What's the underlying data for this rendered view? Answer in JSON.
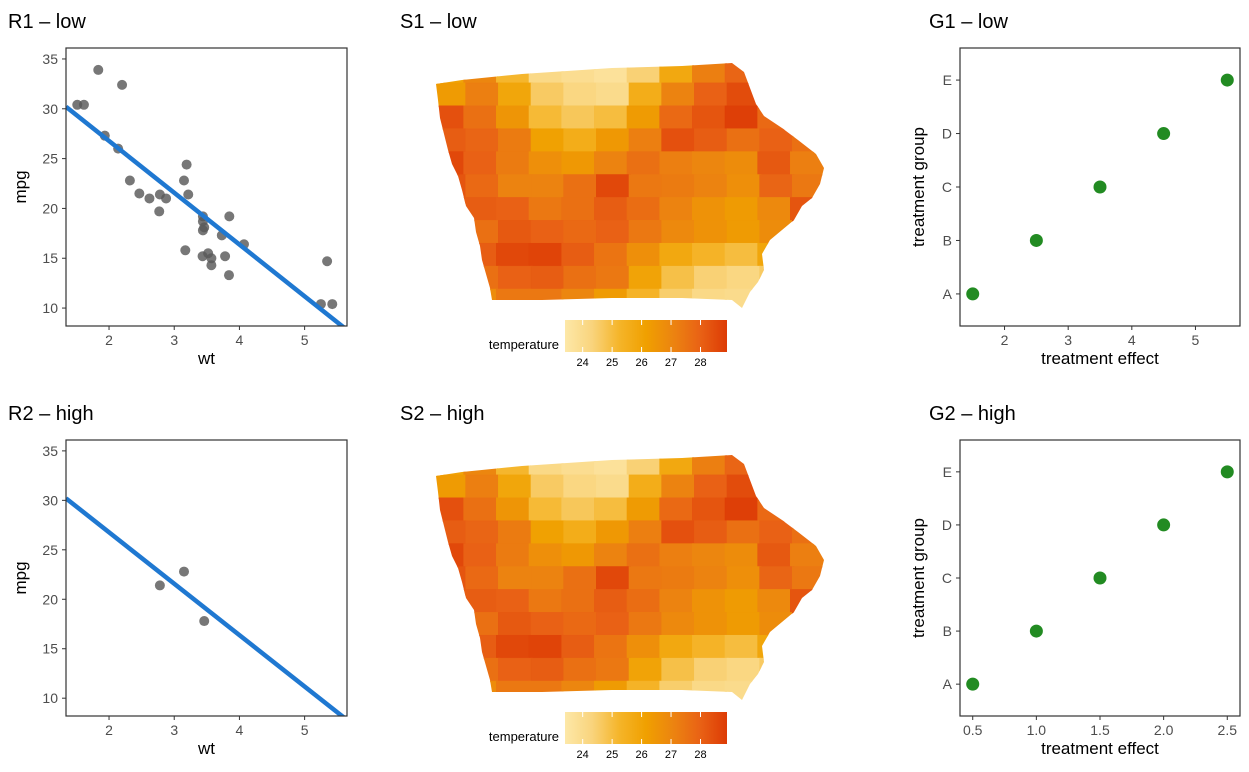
{
  "chart_data": [
    {
      "id": "R1",
      "type": "scatter",
      "title": "R1 – low",
      "xlabel": "wt",
      "ylabel": "mpg",
      "xlim": [
        1.34,
        5.65
      ],
      "ylim": [
        8.2,
        36.1
      ],
      "xticks": [
        2,
        3,
        4,
        5
      ],
      "yticks": [
        10,
        15,
        20,
        25,
        30,
        35
      ],
      "point_color": "#595959",
      "line_color": "#1f78d1",
      "regression_line": {
        "x": [
          1.34,
          5.65
        ],
        "y": [
          30.2,
          7.8
        ]
      },
      "points": {
        "x": [
          2.62,
          2.875,
          2.32,
          3.215,
          3.44,
          3.46,
          3.57,
          3.19,
          3.15,
          3.44,
          3.44,
          4.07,
          3.73,
          3.78,
          5.25,
          5.424,
          5.345,
          2.2,
          1.615,
          1.835,
          2.465,
          3.52,
          3.435,
          3.84,
          3.845,
          1.935,
          2.14,
          1.513,
          3.17,
          2.77,
          3.57,
          2.78
        ],
        "y": [
          21.0,
          21.0,
          22.8,
          21.4,
          18.7,
          18.1,
          14.3,
          24.4,
          22.8,
          19.2,
          17.8,
          16.4,
          17.3,
          15.2,
          10.4,
          10.4,
          14.7,
          32.4,
          30.4,
          33.9,
          21.5,
          15.5,
          15.2,
          13.3,
          19.2,
          27.3,
          26.0,
          30.4,
          15.8,
          19.7,
          15.0,
          21.4
        ]
      }
    },
    {
      "id": "S1",
      "type": "heatmap",
      "title": "S1 – low",
      "legend_title": "temperature",
      "legend_ticks": [
        24,
        25,
        26,
        27,
        28
      ],
      "legend_range": [
        23.4,
        28.9
      ],
      "palette": [
        "#fde8a8",
        "#f9d47d",
        "#f5b52a",
        "#f0a000",
        "#ec8410",
        "#e96215",
        "#dd3b05"
      ],
      "grid": [
        [
          26.0,
          27.0,
          25.2,
          24.1,
          23.9,
          23.7,
          24.4,
          25.8,
          27.2,
          27.9,
          28.1,
          26.8
        ],
        [
          26.3,
          27.2,
          25.9,
          24.6,
          24.2,
          24.0,
          25.6,
          27.1,
          28.0,
          28.5,
          27.6,
          26.3
        ],
        [
          28.4,
          27.6,
          26.5,
          25.1,
          24.7,
          25.0,
          26.3,
          27.8,
          28.3,
          28.8,
          27.8,
          27.0
        ],
        [
          28.1,
          27.9,
          27.3,
          26.1,
          25.6,
          26.4,
          27.2,
          28.4,
          28.1,
          27.6,
          28.0,
          27.6
        ],
        [
          28.6,
          28.0,
          27.3,
          26.7,
          26.4,
          27.1,
          27.6,
          27.2,
          27.0,
          26.8,
          28.2,
          27.2
        ],
        [
          28.3,
          27.8,
          27.1,
          27.1,
          27.6,
          28.6,
          27.4,
          27.3,
          27.1,
          26.7,
          27.9,
          27.4
        ],
        [
          27.8,
          28.1,
          28.0,
          27.4,
          27.6,
          28.1,
          27.7,
          27.1,
          26.6,
          26.3,
          26.9,
          28.3
        ],
        [
          26.3,
          27.6,
          28.2,
          28.0,
          27.8,
          28.0,
          27.4,
          26.9,
          26.6,
          26.3,
          26.8,
          28.6
        ],
        [
          26.4,
          28.1,
          28.6,
          28.7,
          28.1,
          27.5,
          26.7,
          25.8,
          25.3,
          25.0,
          25.9,
          27.4
        ],
        [
          26.8,
          27.6,
          28.0,
          28.1,
          27.6,
          27.4,
          26.0,
          24.9,
          24.4,
          24.2,
          24.6,
          25.6
        ],
        [
          26.2,
          26.8,
          27.4,
          27.4,
          27.0,
          26.3,
          25.3,
          24.5,
          24.1,
          24.0,
          24.4,
          25.1
        ]
      ]
    },
    {
      "id": "G1",
      "type": "scatter",
      "title": "G1 – low",
      "xlabel": "treatment effect",
      "ylabel": "treatment group",
      "xlim": [
        1.3,
        5.7
      ],
      "xticks": [
        2,
        3,
        4,
        5
      ],
      "categories": [
        "A",
        "B",
        "C",
        "D",
        "E"
      ],
      "point_color": "#228b22",
      "values": [
        1.5,
        2.5,
        3.5,
        4.5,
        5.5
      ]
    },
    {
      "id": "R2",
      "type": "scatter",
      "title": "R2 – high",
      "xlabel": "wt",
      "ylabel": "mpg",
      "xlim": [
        1.34,
        5.65
      ],
      "ylim": [
        8.2,
        36.1
      ],
      "xticks": [
        2,
        3,
        4,
        5
      ],
      "yticks": [
        10,
        15,
        20,
        25,
        30,
        35
      ],
      "point_color": "#595959",
      "line_color": "#1f78d1",
      "regression_line": {
        "x": [
          1.34,
          5.65
        ],
        "y": [
          30.2,
          7.8
        ]
      },
      "points": {
        "x": [
          2.78,
          3.15,
          3.46
        ],
        "y": [
          21.4,
          22.8,
          17.8
        ]
      }
    },
    {
      "id": "S2",
      "type": "heatmap",
      "title": "S2 – high",
      "legend_title": "temperature",
      "legend_ticks": [
        24,
        25,
        26,
        27,
        28
      ],
      "legend_range": [
        23.4,
        28.9
      ],
      "palette": [
        "#fde8a8",
        "#f9d47d",
        "#f5b52a",
        "#f0a000",
        "#ec8410",
        "#e96215",
        "#dd3b05"
      ],
      "grid": [
        [
          26.0,
          27.0,
          25.2,
          24.1,
          23.9,
          23.7,
          24.4,
          25.8,
          27.2,
          27.9,
          28.1,
          26.8
        ],
        [
          26.3,
          27.2,
          25.9,
          24.6,
          24.2,
          24.0,
          25.6,
          27.1,
          28.0,
          28.5,
          27.6,
          26.3
        ],
        [
          28.4,
          27.6,
          26.5,
          25.1,
          24.7,
          25.0,
          26.3,
          27.8,
          28.3,
          28.8,
          27.8,
          27.0
        ],
        [
          28.1,
          27.9,
          27.3,
          26.1,
          25.6,
          26.4,
          27.2,
          28.4,
          28.1,
          27.6,
          28.0,
          27.6
        ],
        [
          28.6,
          28.0,
          27.3,
          26.7,
          26.4,
          27.1,
          27.6,
          27.2,
          27.0,
          26.8,
          28.2,
          27.2
        ],
        [
          28.3,
          27.8,
          27.1,
          27.1,
          27.6,
          28.6,
          27.4,
          27.3,
          27.1,
          26.7,
          27.9,
          27.4
        ],
        [
          27.8,
          28.1,
          28.0,
          27.4,
          27.6,
          28.1,
          27.7,
          27.1,
          26.6,
          26.3,
          26.9,
          28.3
        ],
        [
          26.3,
          27.6,
          28.2,
          28.0,
          27.8,
          28.0,
          27.4,
          26.9,
          26.6,
          26.3,
          26.8,
          28.6
        ],
        [
          26.4,
          28.1,
          28.6,
          28.7,
          28.1,
          27.5,
          26.7,
          25.8,
          25.3,
          25.0,
          25.9,
          27.4
        ],
        [
          26.8,
          27.6,
          28.0,
          28.1,
          27.6,
          27.4,
          26.0,
          24.9,
          24.4,
          24.2,
          24.6,
          25.6
        ],
        [
          26.2,
          26.8,
          27.4,
          27.4,
          27.0,
          26.3,
          25.3,
          24.5,
          24.1,
          24.0,
          24.4,
          25.1
        ]
      ]
    },
    {
      "id": "G2",
      "type": "scatter",
      "title": "G2 – high",
      "xlabel": "treatment effect",
      "ylabel": "treatment group",
      "xlim": [
        0.4,
        2.6
      ],
      "xticks": [
        0.5,
        1.0,
        1.5,
        2.0,
        2.5
      ],
      "categories": [
        "A",
        "B",
        "C",
        "D",
        "E"
      ],
      "point_color": "#228b22",
      "values": [
        0.5,
        1.0,
        1.5,
        2.0,
        2.5
      ]
    }
  ]
}
